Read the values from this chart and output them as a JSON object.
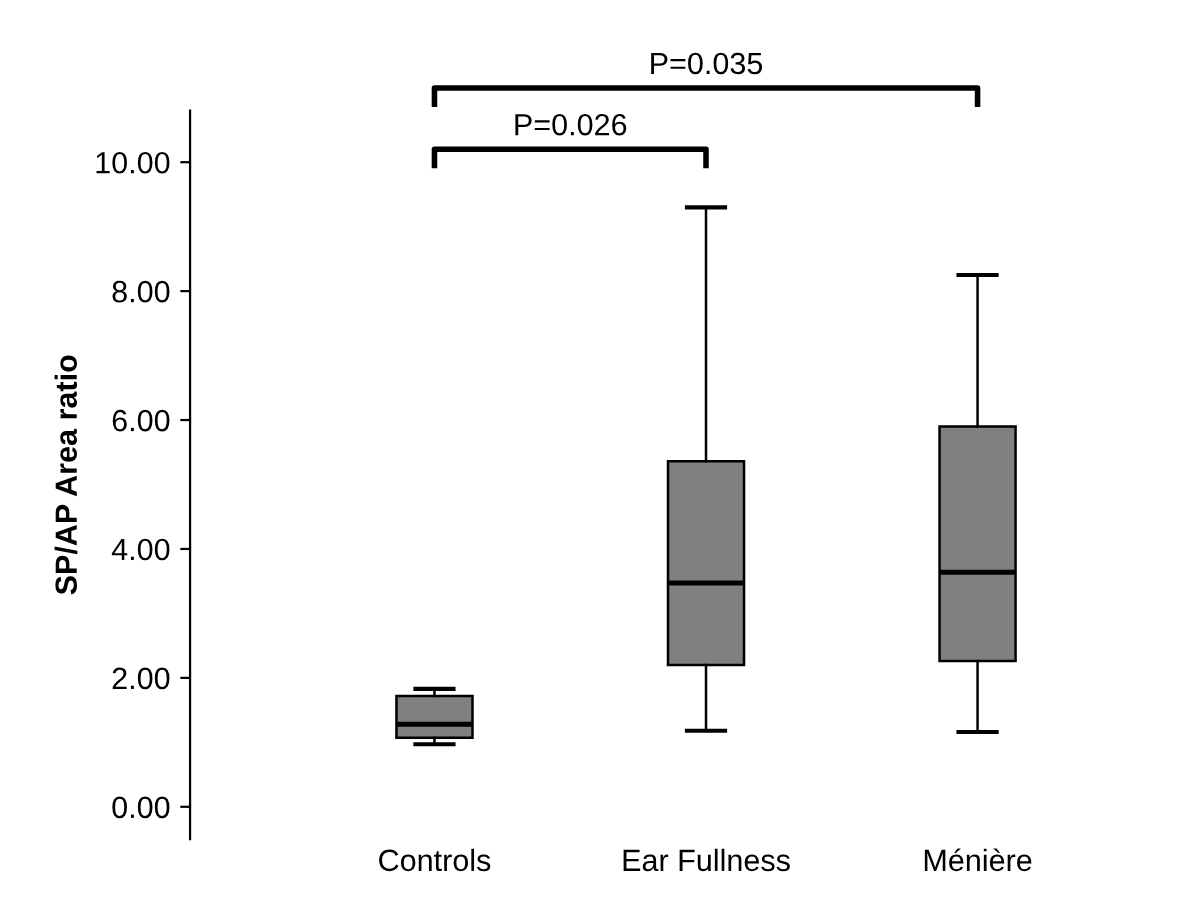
{
  "chart_data": {
    "type": "box",
    "ylabel": "SP/AP Area ratio",
    "categories": [
      "Controls",
      "Ear Fullness",
      "Ménière"
    ],
    "boxes": [
      {
        "low": 0.97,
        "q1": 1.07,
        "median": 1.28,
        "q3": 1.72,
        "high": 1.83
      },
      {
        "low": 1.18,
        "q1": 2.2,
        "median": 3.47,
        "q3": 5.36,
        "high": 9.3
      },
      {
        "low": 1.16,
        "q1": 2.26,
        "median": 3.64,
        "q3": 5.9,
        "high": 8.25
      }
    ],
    "color": "#808080",
    "ylim": [
      -0.5,
      10.8
    ],
    "yticks": [
      {
        "value": 0,
        "label": "0.00"
      },
      {
        "value": 2,
        "label": "2.00"
      },
      {
        "value": 4,
        "label": "4.00"
      },
      {
        "value": 6,
        "label": "6.00"
      },
      {
        "value": 8,
        "label": "8.00"
      },
      {
        "value": 10,
        "label": "10.00"
      }
    ],
    "annotations": [
      "P=0.026",
      "P=0.035"
    ],
    "grid": false,
    "legend": false
  }
}
